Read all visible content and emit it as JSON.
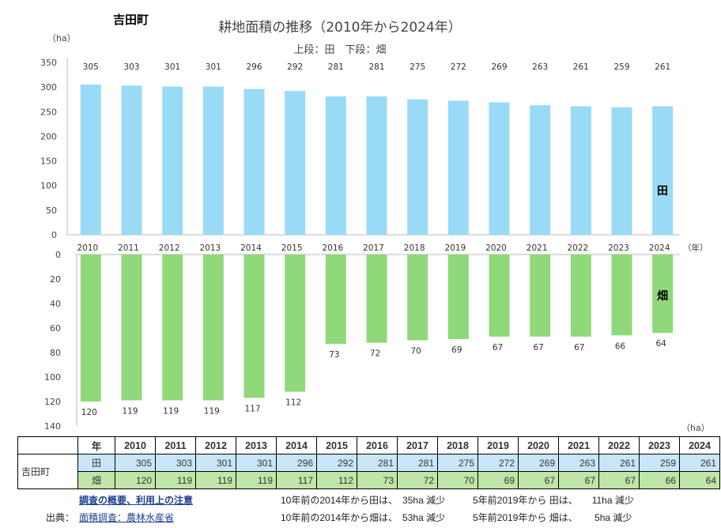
{
  "town": "吉田町",
  "title": "耕地面積の推移（2010年から2024年）",
  "subtitle": "上段：田　下段：畑",
  "unit_top": "（ha）",
  "unit_bottom": "（ha）",
  "colors": {
    "rice": "#99daf7",
    "field": "#8fd97a"
  },
  "chart_data": [
    {
      "type": "bar",
      "series_label": "田",
      "categories": [
        "2010",
        "2011",
        "2012",
        "2013",
        "2014",
        "2015",
        "2016",
        "2017",
        "2018",
        "2019",
        "2020",
        "2021",
        "2022",
        "2023",
        "2024"
      ],
      "values": [
        305,
        303,
        301,
        301,
        296,
        292,
        281,
        281,
        275,
        272,
        269,
        263,
        261,
        259,
        261
      ],
      "ylim": [
        0,
        350
      ],
      "yticks": [
        0,
        50,
        100,
        150,
        200,
        250,
        300,
        350
      ],
      "ylabel": "（ha）",
      "xlabel": "（年）"
    },
    {
      "type": "bar",
      "series_label": "畑",
      "categories": [
        "2010",
        "2011",
        "2012",
        "2013",
        "2014",
        "2015",
        "2016",
        "2017",
        "2018",
        "2019",
        "2020",
        "2021",
        "2022",
        "2023",
        "2024"
      ],
      "values": [
        120,
        119,
        119,
        119,
        117,
        112,
        73,
        72,
        70,
        69,
        67,
        67,
        67,
        66,
        64
      ],
      "ylim": [
        0,
        140
      ],
      "yticks": [
        0,
        20,
        40,
        60,
        80,
        100,
        120,
        140
      ],
      "inverted": true,
      "ylabel": "（ha）"
    }
  ],
  "table": {
    "header_label": "年",
    "years": [
      "2010",
      "2011",
      "2012",
      "2013",
      "2014",
      "2015",
      "2016",
      "2017",
      "2018",
      "2019",
      "2020",
      "2021",
      "2022",
      "2023",
      "2024"
    ],
    "town": "吉田町",
    "rows": [
      {
        "label": "田",
        "values": [
          "305",
          "303",
          "301",
          "301",
          "296",
          "292",
          "281",
          "281",
          "275",
          "272",
          "269",
          "263",
          "261",
          "259",
          "261"
        ]
      },
      {
        "label": "畑",
        "values": [
          "120",
          "119",
          "119",
          "119",
          "117",
          "112",
          "73",
          "72",
          "70",
          "69",
          "67",
          "67",
          "67",
          "66",
          "64"
        ]
      }
    ]
  },
  "footer": {
    "notes_link": "調査の概要、利用上の注意",
    "source_label": "出典：",
    "source_link": "面積調査：農林水産省",
    "line1_a": "10年前の2014年から田は、　35ha 減少",
    "line1_b": "5年前2019年から 田は、　　11ha 減少",
    "line2_a": "10年前の2014年から畑は、　53ha 減少",
    "line2_b": "5年前2019年から 畑は、　　 5ha 減少"
  }
}
